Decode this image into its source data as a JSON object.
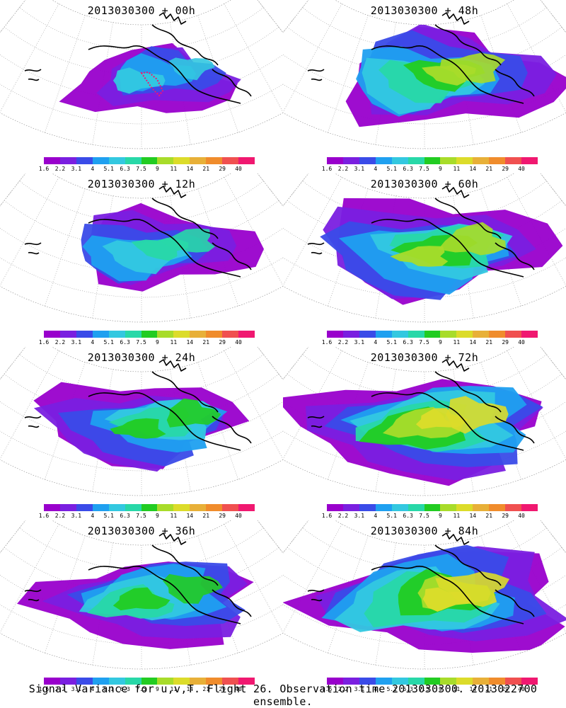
{
  "caption": "Signal Variance for u,v,T. Flight 26. Observation time 2013030300. 2013022700 ensemble.",
  "colorbar": {
    "colors": [
      "#9900cc",
      "#7a1fe0",
      "#3a4be8",
      "#1fa0f0",
      "#33c8e0",
      "#28d8a8",
      "#22cc22",
      "#a8dc2a",
      "#dcdc2a",
      "#e8b038",
      "#f08c2c",
      "#f05050",
      "#f01870"
    ],
    "labels": [
      "1.6",
      "2.2",
      "3.1",
      "4",
      "5.1",
      "6.3",
      "7.5",
      "9",
      "11",
      "14",
      "21",
      "29",
      "40"
    ]
  },
  "panels": [
    {
      "title": "2013030300 + 00h",
      "fill_level": 0.25,
      "track": true
    },
    {
      "title": "2013030300 + 48h",
      "fill_level": 0.62,
      "track": false
    },
    {
      "title": "2013030300 + 12h",
      "fill_level": 0.38,
      "track": false
    },
    {
      "title": "2013030300 + 60h",
      "fill_level": 0.68,
      "track": false
    },
    {
      "title": "2013030300 + 24h",
      "fill_level": 0.48,
      "track": false
    },
    {
      "title": "2013030300 + 72h",
      "fill_level": 0.74,
      "track": false
    },
    {
      "title": "2013030300 + 36h",
      "fill_level": 0.55,
      "track": false
    },
    {
      "title": "2013030300 + 84h",
      "fill_level": 0.8,
      "track": false
    }
  ]
}
